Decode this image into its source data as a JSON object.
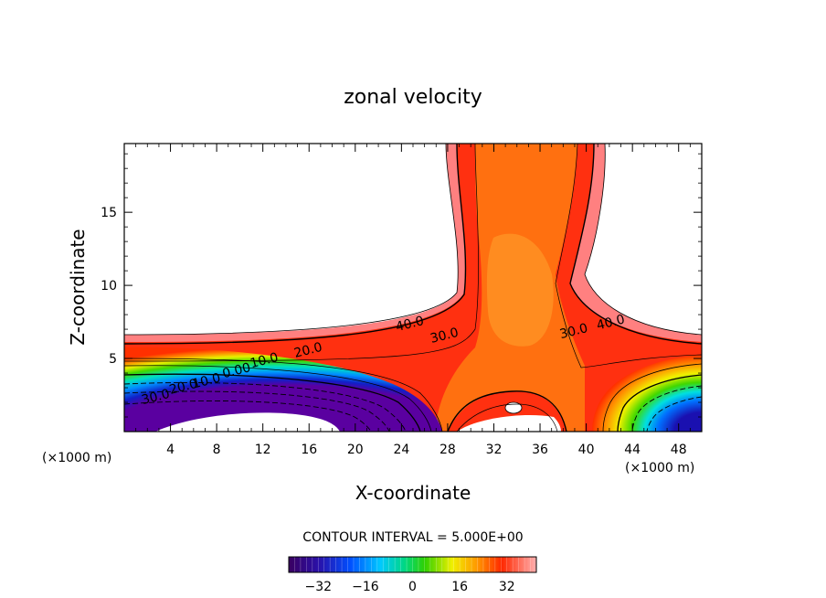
{
  "chart_data": {
    "type": "contour",
    "title": "zonal velocity",
    "xlabel": "X-coordinate",
    "ylabel": "Z-coordinate",
    "x_unit_left": "(×1000 m)",
    "x_unit_right": "(×1000 m)",
    "xlim": [
      0,
      50
    ],
    "ylim": [
      0,
      19.7
    ],
    "xticks": [
      4,
      8,
      12,
      16,
      20,
      24,
      28,
      32,
      36,
      40,
      44,
      48
    ],
    "yticks": [
      5,
      10,
      15
    ],
    "contour_interval_text": "CONTOUR INTERVAL = 5.000E+00",
    "contour_labels": [
      {
        "text": "40.0",
        "x": 24.8,
        "z": 7.1
      },
      {
        "text": "30.0",
        "x": 27.8,
        "z": 6.3
      },
      {
        "text": "30.0",
        "x": 39.0,
        "z": 6.6
      },
      {
        "text": "40.0",
        "x": 42.2,
        "z": 7.2
      },
      {
        "text": "20.0",
        "x": 16.0,
        "z": 5.3
      },
      {
        "text": "10.0",
        "x": 12.2,
        "z": 4.6
      },
      {
        "text": "0.00",
        "x": 9.8,
        "z": 3.9
      },
      {
        "text": "10.0",
        "x": 7.2,
        "z": 3.2
      },
      {
        "text": "20.0",
        "x": 5.2,
        "z": 2.8
      },
      {
        "text": "30.0",
        "x": 2.8,
        "z": 2.1
      }
    ],
    "colorbar": {
      "range": [
        -42,
        42
      ],
      "ticks": [
        -32,
        -16,
        0,
        16,
        32
      ],
      "tick_labels": [
        "−32",
        "−16",
        "0",
        "16",
        "32"
      ]
    }
  }
}
